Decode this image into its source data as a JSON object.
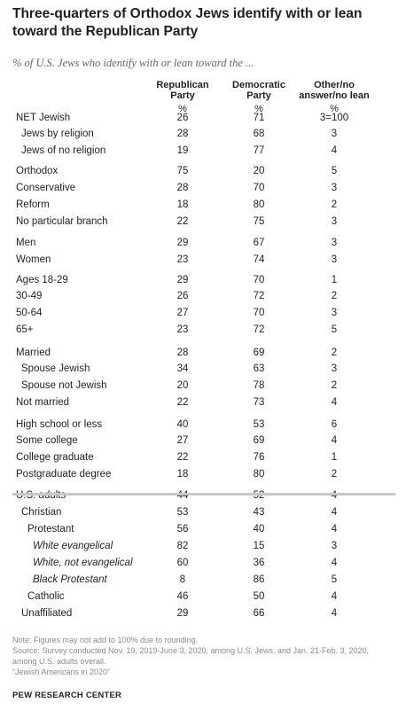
{
  "title": "Three-quarters of Orthodox Jews identify with or lean toward the Republican Party",
  "subtitle": "% of U.S. Jews who identify with or lean toward the ...",
  "columns": [
    {
      "name": "Republican Party",
      "line1": "Republican",
      "line2": "Party",
      "line3": "",
      "unit": "%"
    },
    {
      "name": "Democratic Party",
      "line1": "Democratic",
      "line2": "Party",
      "line3": "",
      "unit": "%"
    },
    {
      "name": "Other/no answer/no lean",
      "line1": "Other/no",
      "line2": "answer/no lean",
      "line3": "",
      "unit": "%"
    }
  ],
  "chart_data": {
    "type": "table",
    "columns": [
      "Republican Party",
      "Democratic Party",
      "Other/no answer/no lean"
    ],
    "rows": [
      {
        "label": "NET Jewish",
        "values": [
          "26",
          "71",
          "3=100"
        ]
      },
      {
        "label": "Jews by religion",
        "values": [
          "28",
          "68",
          "3"
        ]
      },
      {
        "label": "Jews of no religion",
        "values": [
          "19",
          "77",
          "4"
        ]
      },
      {
        "label": "Orthodox",
        "values": [
          "75",
          "20",
          "5"
        ]
      },
      {
        "label": "Conservative",
        "values": [
          "28",
          "70",
          "3"
        ]
      },
      {
        "label": "Reform",
        "values": [
          "18",
          "80",
          "2"
        ]
      },
      {
        "label": "No particular branch",
        "values": [
          "22",
          "75",
          "3"
        ]
      },
      {
        "label": "Men",
        "values": [
          "29",
          "67",
          "3"
        ]
      },
      {
        "label": "Women",
        "values": [
          "23",
          "74",
          "3"
        ]
      },
      {
        "label": "Ages 18-29",
        "values": [
          "29",
          "70",
          "1"
        ]
      },
      {
        "label": "30-49",
        "values": [
          "26",
          "72",
          "2"
        ]
      },
      {
        "label": "50-64",
        "values": [
          "27",
          "70",
          "3"
        ]
      },
      {
        "label": "65+",
        "values": [
          "23",
          "72",
          "5"
        ]
      },
      {
        "label": "Married",
        "values": [
          "28",
          "69",
          "2"
        ]
      },
      {
        "label": "Spouse Jewish",
        "values": [
          "34",
          "63",
          "3"
        ]
      },
      {
        "label": "Spouse not Jewish",
        "values": [
          "20",
          "78",
          "2"
        ]
      },
      {
        "label": "Not married",
        "values": [
          "22",
          "73",
          "4"
        ]
      },
      {
        "label": "High school or less",
        "values": [
          "40",
          "53",
          "6"
        ]
      },
      {
        "label": "Some college",
        "values": [
          "27",
          "69",
          "4"
        ]
      },
      {
        "label": "College graduate",
        "values": [
          "22",
          "76",
          "1"
        ]
      },
      {
        "label": "Postgraduate degree",
        "values": [
          "18",
          "80",
          "2"
        ]
      },
      {
        "label": "U.S. adults",
        "values": [
          "44",
          "52",
          "4"
        ]
      },
      {
        "label": "Christian",
        "values": [
          "53",
          "43",
          "4"
        ]
      },
      {
        "label": "Protestant",
        "values": [
          "56",
          "40",
          "4"
        ]
      },
      {
        "label": "White evangelical",
        "values": [
          "82",
          "15",
          "3"
        ]
      },
      {
        "label": "White, not evangelical",
        "values": [
          "60",
          "36",
          "4"
        ]
      },
      {
        "label": "Black Protestant",
        "values": [
          "8",
          "86",
          "5"
        ]
      },
      {
        "label": "Catholic",
        "values": [
          "46",
          "50",
          "4"
        ]
      },
      {
        "label": "Unaffiliated",
        "values": [
          "29",
          "66",
          "4"
        ]
      }
    ]
  },
  "footer": {
    "note": "Note: Figures may not add to 100% due to rounding.",
    "source": "Source: Survey conducted Nov. 19, 2019-June 3, 2020, among U.S. Jews, and Jan. 21-Feb. 3, 2020, among U.S. adults overall.",
    "report": "“Jewish Americans in 2020”",
    "brand": "PEW RESEARCH CENTER"
  }
}
